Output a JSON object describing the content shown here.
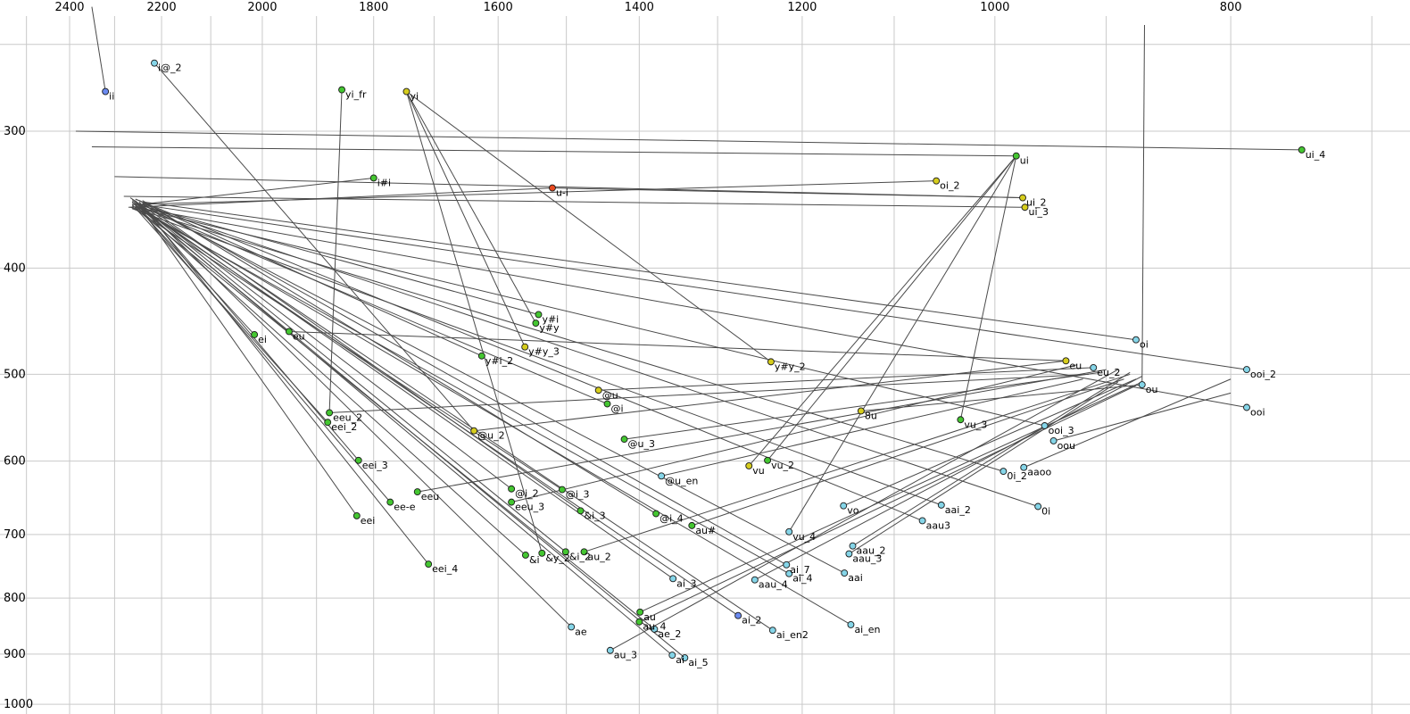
{
  "chart_data": {
    "type": "scatter",
    "title": "",
    "xlabel": "",
    "ylabel": "",
    "axes": {
      "x": {
        "scale": "log",
        "reversed": true,
        "range": [
          2565,
          675
        ],
        "ticks": [
          2400,
          2200,
          2000,
          1800,
          1600,
          1400,
          1200,
          1000,
          800
        ],
        "grid": [
          2500,
          2400,
          2300,
          2200,
          2100,
          2000,
          1900,
          1800,
          1700,
          1600,
          1500,
          1400,
          1300,
          1200,
          1100,
          1000,
          900,
          800,
          700
        ]
      },
      "y": {
        "scale": "log",
        "reversed": true,
        "range": [
          228,
          1012
        ],
        "ticks": [
          300,
          400,
          500,
          600,
          700,
          800,
          900,
          1000
        ],
        "grid": [
          250,
          300,
          400,
          500,
          600,
          700,
          800,
          900,
          1000
        ]
      }
    },
    "palette": {
      "green": "#44c631",
      "yellow": "#d6cd1d",
      "cyan": "#85d5e8",
      "blue": "#6b8af0",
      "red": "#e8491f"
    },
    "line_color": "#4a4a4a",
    "grid_color": "#c9c9c9",
    "points": [
      {
        "label": "ii",
        "f2": 2320,
        "f1": 276,
        "color": "blue"
      },
      {
        "label": "i@_2",
        "f2": 2215,
        "f1": 260,
        "color": "cyan"
      },
      {
        "label": "yi_fr",
        "f2": 1855,
        "f1": 275,
        "color": "green"
      },
      {
        "label": "yi",
        "f2": 1745,
        "f1": 276,
        "color": "yellow"
      },
      {
        "label": "i#i",
        "f2": 1800,
        "f1": 331,
        "color": "green"
      },
      {
        "label": "u-i",
        "f2": 1520,
        "f1": 338,
        "color": "red"
      },
      {
        "label": "ui",
        "f2": 980,
        "f1": 316,
        "color": "green"
      },
      {
        "label": "oi_2",
        "f2": 1057,
        "f1": 333,
        "color": "yellow"
      },
      {
        "label": "ui_2",
        "f2": 974,
        "f1": 345,
        "color": "yellow"
      },
      {
        "label": "ui_3",
        "f2": 972,
        "f1": 352,
        "color": "yellow"
      },
      {
        "label": "ui_4",
        "f2": 748,
        "f1": 312,
        "color": "green"
      },
      {
        "label": "y#i",
        "f2": 1540,
        "f1": 441,
        "color": "green"
      },
      {
        "label": "y#y",
        "f2": 1544,
        "f1": 449,
        "color": "green"
      },
      {
        "label": "y#y_3",
        "f2": 1560,
        "f1": 472,
        "color": "yellow"
      },
      {
        "label": "y#i_2",
        "f2": 1625,
        "f1": 481,
        "color": "green"
      },
      {
        "label": "y#y_2",
        "f2": 1236,
        "f1": 487,
        "color": "yellow"
      },
      {
        "label": "ei",
        "f2": 2015,
        "f1": 460,
        "color": "green"
      },
      {
        "label": "eu",
        "f2": 1950,
        "f1": 457,
        "color": "green"
      },
      {
        "label": "oi",
        "f2": 875,
        "f1": 465,
        "color": "cyan"
      },
      {
        "label": "eu",
        "f2": 935,
        "f1": 486,
        "color": "yellow"
      },
      {
        "label": "eu_2",
        "f2": 911,
        "f1": 493,
        "color": "cyan"
      },
      {
        "label": "ou",
        "f2": 870,
        "f1": 511,
        "color": "cyan"
      },
      {
        "label": "ooi_2",
        "f2": 788,
        "f1": 495,
        "color": "cyan"
      },
      {
        "label": "ooi",
        "f2": 788,
        "f1": 536,
        "color": "cyan"
      },
      {
        "label": "@u",
        "f2": 1455,
        "f1": 517,
        "color": "yellow"
      },
      {
        "label": "@i",
        "f2": 1443,
        "f1": 532,
        "color": "green"
      },
      {
        "label": "8u",
        "f2": 1135,
        "f1": 540,
        "color": "yellow"
      },
      {
        "label": "vu_3",
        "f2": 1033,
        "f1": 550,
        "color": "green"
      },
      {
        "label": "ooi_3",
        "f2": 954,
        "f1": 557,
        "color": "cyan"
      },
      {
        "label": "oou",
        "f2": 946,
        "f1": 575,
        "color": "cyan"
      },
      {
        "label": "eeu_2",
        "f2": 1877,
        "f1": 542,
        "color": "green"
      },
      {
        "label": "eei_2",
        "f2": 1880,
        "f1": 553,
        "color": "green"
      },
      {
        "label": "@u_2",
        "f2": 1637,
        "f1": 563,
        "color": "yellow"
      },
      {
        "label": "@u_3",
        "f2": 1420,
        "f1": 573,
        "color": "green"
      },
      {
        "label": "0i_2",
        "f2": 992,
        "f1": 613,
        "color": "cyan"
      },
      {
        "label": "aaoo",
        "f2": 973,
        "f1": 608,
        "color": "cyan"
      },
      {
        "label": "eei_3",
        "f2": 1826,
        "f1": 599,
        "color": "green"
      },
      {
        "label": "vu",
        "f2": 1262,
        "f1": 606,
        "color": "yellow"
      },
      {
        "label": "vu_2",
        "f2": 1240,
        "f1": 599,
        "color": "green"
      },
      {
        "label": "@u_en",
        "f2": 1371,
        "f1": 619,
        "color": "cyan"
      },
      {
        "label": "eeu",
        "f2": 1727,
        "f1": 640,
        "color": "green"
      },
      {
        "label": "ee-e",
        "f2": 1772,
        "f1": 654,
        "color": "green"
      },
      {
        "label": "@i_2",
        "f2": 1580,
        "f1": 636,
        "color": "green"
      },
      {
        "label": "@i_3",
        "f2": 1506,
        "f1": 637,
        "color": "green"
      },
      {
        "label": "eeu_3",
        "f2": 1580,
        "f1": 654,
        "color": "green"
      },
      {
        "label": "&i_3",
        "f2": 1480,
        "f1": 666,
        "color": "green"
      },
      {
        "label": "@i_4",
        "f2": 1378,
        "f1": 670,
        "color": "green"
      },
      {
        "label": "au#",
        "f2": 1332,
        "f1": 687,
        "color": "green"
      },
      {
        "label": "vo",
        "f2": 1154,
        "f1": 659,
        "color": "cyan"
      },
      {
        "label": "aai_2",
        "f2": 1052,
        "f1": 658,
        "color": "cyan"
      },
      {
        "label": "0i",
        "f2": 960,
        "f1": 660,
        "color": "cyan"
      },
      {
        "label": "aau3",
        "f2": 1071,
        "f1": 680,
        "color": "cyan"
      },
      {
        "label": "eei",
        "f2": 1829,
        "f1": 673,
        "color": "green"
      },
      {
        "label": "vu_4",
        "f2": 1215,
        "f1": 696,
        "color": "cyan"
      },
      {
        "label": "aau_2",
        "f2": 1144,
        "f1": 717,
        "color": "cyan"
      },
      {
        "label": "aau_3",
        "f2": 1148,
        "f1": 729,
        "color": "cyan"
      },
      {
        "label": "&i",
        "f2": 1559,
        "f1": 731,
        "color": "green"
      },
      {
        "label": "&y_2",
        "f2": 1535,
        "f1": 728,
        "color": "green"
      },
      {
        "label": "&i_2",
        "f2": 1501,
        "f1": 726,
        "color": "green"
      },
      {
        "label": "au_2",
        "f2": 1475,
        "f1": 726,
        "color": "green"
      },
      {
        "label": "ai_7",
        "f2": 1218,
        "f1": 746,
        "color": "cyan"
      },
      {
        "label": "ai_4",
        "f2": 1215,
        "f1": 760,
        "color": "cyan"
      },
      {
        "label": "aai",
        "f2": 1153,
        "f1": 759,
        "color": "cyan"
      },
      {
        "label": "eei_4",
        "f2": 1709,
        "f1": 745,
        "color": "green"
      },
      {
        "label": "aau_4",
        "f2": 1255,
        "f1": 770,
        "color": "cyan"
      },
      {
        "label": "ai_3",
        "f2": 1356,
        "f1": 768,
        "color": "cyan"
      },
      {
        "label": "au",
        "f2": 1399,
        "f1": 824,
        "color": "green"
      },
      {
        "label": "au_4",
        "f2": 1400,
        "f1": 841,
        "color": "green"
      },
      {
        "label": "ae_2",
        "f2": 1380,
        "f1": 854,
        "color": "cyan"
      },
      {
        "label": "ai_2",
        "f2": 1275,
        "f1": 830,
        "color": "blue"
      },
      {
        "label": "ai_en2",
        "f2": 1234,
        "f1": 856,
        "color": "cyan"
      },
      {
        "label": "ai_en",
        "f2": 1146,
        "f1": 846,
        "color": "cyan"
      },
      {
        "label": "ae",
        "f2": 1493,
        "f1": 850,
        "color": "cyan"
      },
      {
        "label": "au_3",
        "f2": 1439,
        "f1": 893,
        "color": "cyan"
      },
      {
        "label": "ai",
        "f2": 1357,
        "f1": 902,
        "color": "cyan"
      },
      {
        "label": "ai_5",
        "f2": 1341,
        "f1": 907,
        "color": "cyan"
      }
    ],
    "lines": [
      [
        1357,
        902,
        2262,
        347
      ],
      [
        1341,
        907,
        2255,
        350
      ],
      [
        1275,
        830,
        2247,
        352
      ],
      [
        1146,
        846,
        2240,
        354
      ],
      [
        1234,
        856,
        2266,
        345
      ],
      [
        1356,
        768,
        2255,
        349
      ],
      [
        1215,
        760,
        2262,
        351
      ],
      [
        1218,
        746,
        2247,
        347
      ],
      [
        1153,
        759,
        2240,
        350
      ],
      [
        1052,
        658,
        2262,
        353
      ],
      [
        1071,
        680,
        2255,
        346
      ],
      [
        960,
        660,
        2247,
        350
      ],
      [
        992,
        613,
        2266,
        352
      ],
      [
        875,
        465,
        2240,
        348
      ],
      [
        788,
        536,
        2255,
        352
      ],
      [
        788,
        495,
        2262,
        349
      ],
      [
        954,
        557,
        2247,
        353
      ],
      [
        1829,
        673,
        2255,
        347
      ],
      [
        1880,
        553,
        2262,
        350
      ],
      [
        1826,
        599,
        2240,
        352
      ],
      [
        1709,
        745,
        2247,
        348
      ],
      [
        1559,
        731,
        2255,
        351
      ],
      [
        1501,
        726,
        2262,
        346
      ],
      [
        1480,
        666,
        2240,
        349
      ],
      [
        1443,
        532,
        2247,
        351
      ],
      [
        1580,
        636,
        2255,
        348
      ],
      [
        1506,
        637,
        2262,
        352
      ],
      [
        1378,
        670,
        2240,
        347
      ],
      [
        2015,
        460,
        2262,
        348
      ],
      [
        1493,
        850,
        2247,
        349
      ],
      [
        1380,
        854,
        2255,
        353
      ],
      [
        1540,
        441,
        2240,
        351
      ],
      [
        1625,
        481,
        2255,
        346
      ],
      [
        1057,
        333,
        2262,
        350
      ],
      [
        980,
        316,
        2350,
        310
      ],
      [
        974,
        345,
        2300,
        330
      ],
      [
        972,
        352,
        2280,
        344
      ],
      [
        748,
        312,
        2386,
        300
      ],
      [
        1520,
        338,
        974,
        345
      ],
      [
        1520,
        338,
        2270,
        352
      ],
      [
        2320,
        276,
        2350,
        231
      ],
      [
        2215,
        260,
        1637,
        563
      ],
      [
        1800,
        331,
        2247,
        350
      ],
      [
        1399,
        824,
        870,
        508
      ],
      [
        1475,
        726,
        880,
        500
      ],
      [
        1439,
        893,
        890,
        495
      ],
      [
        1400,
        841,
        875,
        512
      ],
      [
        1332,
        687,
        885,
        505
      ],
      [
        1144,
        717,
        880,
        498
      ],
      [
        1148,
        729,
        890,
        508
      ],
      [
        1255,
        770,
        870,
        502
      ],
      [
        1455,
        517,
        911,
        493
      ],
      [
        1637,
        563,
        935,
        486
      ],
      [
        1420,
        573,
        905,
        498
      ],
      [
        1371,
        619,
        920,
        505
      ],
      [
        1727,
        640,
        900,
        495
      ],
      [
        1877,
        542,
        915,
        500
      ],
      [
        1580,
        654,
        925,
        490
      ],
      [
        1950,
        457,
        935,
        486
      ],
      [
        1135,
        540,
        870,
        511
      ],
      [
        1154,
        659,
        875,
        505
      ],
      [
        946,
        575,
        800,
        520
      ],
      [
        973,
        608,
        800,
        505
      ],
      [
        1544,
        449,
        1745,
        276
      ],
      [
        1236,
        487,
        1745,
        276
      ],
      [
        1560,
        472,
        1745,
        276
      ],
      [
        1262,
        606,
        980,
        316
      ],
      [
        1240,
        599,
        980,
        316
      ],
      [
        1033,
        550,
        980,
        316
      ],
      [
        1215,
        696,
        980,
        316
      ],
      [
        1535,
        728,
        1745,
        276
      ],
      [
        1855,
        275,
        1877,
        542
      ],
      [
        870,
        511,
        868,
        240
      ],
      [
        1772,
        654,
        2255,
        350
      ]
    ]
  }
}
